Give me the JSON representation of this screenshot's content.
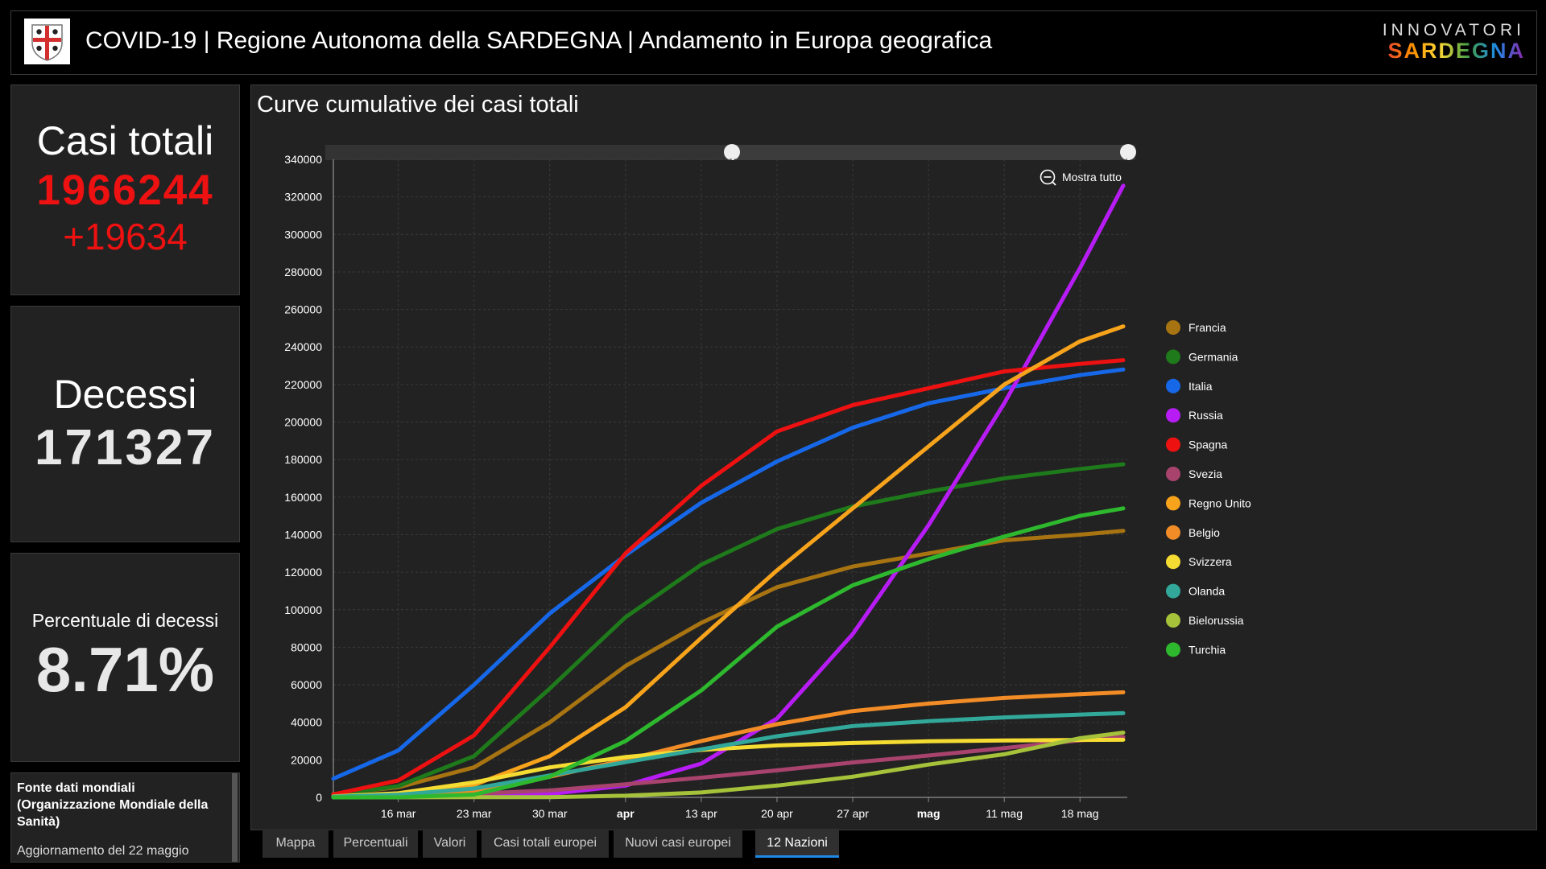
{
  "header": {
    "title": "COVID-19 | Regione Autonoma della SARDEGNA | Andamento in Europa geografica",
    "brand_top": "INNOVATORI",
    "brand_bottom": "SARDEGNA"
  },
  "kpis": {
    "cases_label": "Casi totali",
    "cases_value": "1966244",
    "cases_delta": "+19634",
    "deaths_label": "Decessi",
    "deaths_value": "171327",
    "pct_label": "Percentuale di decessi",
    "pct_value": "8.71%"
  },
  "source": {
    "title": "Fonte dati mondiali (Organizzazione Mondiale della Sanità)",
    "update": "Aggiornamento del 22 maggio"
  },
  "chart_title": "Curve cumulative dei casi totali",
  "zoom_label": "Mostra tutto",
  "tabs": [
    "Mappa",
    "Percentuali",
    "Valori",
    "Casi totali europei",
    "Nuovi casi europei",
    "12 Nazioni"
  ],
  "active_tab": 5,
  "colors": {
    "Francia": "#a87412",
    "Germania": "#1e7a1a",
    "Italia": "#1668e8",
    "Russia": "#b71cf5",
    "Spagna": "#ee1111",
    "Svezia": "#a8436e",
    "Regno Unito": "#f7a41c",
    "Belgio": "#f28c26",
    "Svizzera": "#f5dc32",
    "Olanda": "#32a89a",
    "Bielorussia": "#a5c23a",
    "Turchia": "#2eb82e"
  },
  "chart_data": {
    "type": "line",
    "title": "Curve cumulative dei casi totali",
    "ylim": [
      0,
      340000
    ],
    "yticks": [
      0,
      20000,
      40000,
      60000,
      80000,
      100000,
      120000,
      140000,
      160000,
      180000,
      200000,
      220000,
      240000,
      260000,
      280000,
      300000,
      320000,
      340000
    ],
    "x_start": "2020-03-10",
    "x_end": "2020-05-22",
    "xticks": [
      "16 mar",
      "23 mar",
      "30 mar",
      "apr",
      "13 apr",
      "20 apr",
      "27 apr",
      "mag",
      "11 mag",
      "18 mag"
    ],
    "xtick_dates": [
      "2020-03-16",
      "2020-03-23",
      "2020-03-30",
      "2020-04-06",
      "2020-04-13",
      "2020-04-20",
      "2020-04-27",
      "2020-05-04",
      "2020-05-11",
      "2020-05-18"
    ],
    "legend_position": "right",
    "series": [
      {
        "name": "Francia",
        "points": [
          [
            "2020-03-10",
            1800
          ],
          [
            "2020-03-16",
            5400
          ],
          [
            "2020-03-23",
            16000
          ],
          [
            "2020-03-30",
            40000
          ],
          [
            "2020-04-06",
            70000
          ],
          [
            "2020-04-13",
            93000
          ],
          [
            "2020-04-20",
            112000
          ],
          [
            "2020-04-27",
            123000
          ],
          [
            "2020-05-04",
            130000
          ],
          [
            "2020-05-11",
            137000
          ],
          [
            "2020-05-18",
            140000
          ],
          [
            "2020-05-22",
            142000
          ]
        ]
      },
      {
        "name": "Germania",
        "points": [
          [
            "2020-03-10",
            1200
          ],
          [
            "2020-03-16",
            6000
          ],
          [
            "2020-03-23",
            22000
          ],
          [
            "2020-03-30",
            58000
          ],
          [
            "2020-04-06",
            96000
          ],
          [
            "2020-04-13",
            124000
          ],
          [
            "2020-04-20",
            143000
          ],
          [
            "2020-04-27",
            155000
          ],
          [
            "2020-05-04",
            163000
          ],
          [
            "2020-05-11",
            170000
          ],
          [
            "2020-05-18",
            175000
          ],
          [
            "2020-05-22",
            177500
          ]
        ]
      },
      {
        "name": "Italia",
        "points": [
          [
            "2020-03-10",
            10000
          ],
          [
            "2020-03-16",
            25000
          ],
          [
            "2020-03-23",
            60000
          ],
          [
            "2020-03-30",
            98000
          ],
          [
            "2020-04-06",
            129000
          ],
          [
            "2020-04-13",
            157000
          ],
          [
            "2020-04-20",
            179000
          ],
          [
            "2020-04-27",
            197000
          ],
          [
            "2020-05-04",
            210000
          ],
          [
            "2020-05-11",
            218000
          ],
          [
            "2020-05-18",
            225000
          ],
          [
            "2020-05-22",
            228000
          ]
        ]
      },
      {
        "name": "Russia",
        "points": [
          [
            "2020-03-10",
            20
          ],
          [
            "2020-03-16",
            90
          ],
          [
            "2020-03-23",
            500
          ],
          [
            "2020-03-30",
            1800
          ],
          [
            "2020-04-06",
            6300
          ],
          [
            "2020-04-13",
            18000
          ],
          [
            "2020-04-20",
            42000
          ],
          [
            "2020-04-27",
            87000
          ],
          [
            "2020-05-04",
            145000
          ],
          [
            "2020-05-11",
            210000
          ],
          [
            "2020-05-18",
            282000
          ],
          [
            "2020-05-22",
            326000
          ]
        ]
      },
      {
        "name": "Spagna",
        "points": [
          [
            "2020-03-10",
            1600
          ],
          [
            "2020-03-16",
            9000
          ],
          [
            "2020-03-23",
            33000
          ],
          [
            "2020-03-30",
            80000
          ],
          [
            "2020-04-06",
            130000
          ],
          [
            "2020-04-13",
            166000
          ],
          [
            "2020-04-20",
            195000
          ],
          [
            "2020-04-27",
            209000
          ],
          [
            "2020-05-04",
            218000
          ],
          [
            "2020-05-11",
            227000
          ],
          [
            "2020-05-18",
            231000
          ],
          [
            "2020-05-22",
            233000
          ]
        ]
      },
      {
        "name": "Svezia",
        "points": [
          [
            "2020-03-10",
            300
          ],
          [
            "2020-03-16",
            1100
          ],
          [
            "2020-03-23",
            2000
          ],
          [
            "2020-03-30",
            3700
          ],
          [
            "2020-04-06",
            7000
          ],
          [
            "2020-04-13",
            10500
          ],
          [
            "2020-04-20",
            14400
          ],
          [
            "2020-04-27",
            18600
          ],
          [
            "2020-05-04",
            22300
          ],
          [
            "2020-05-11",
            26300
          ],
          [
            "2020-05-18",
            30400
          ],
          [
            "2020-05-22",
            32200
          ]
        ]
      },
      {
        "name": "Regno Unito",
        "points": [
          [
            "2020-03-10",
            320
          ],
          [
            "2020-03-16",
            1400
          ],
          [
            "2020-03-23",
            6600
          ],
          [
            "2020-03-30",
            22000
          ],
          [
            "2020-04-06",
            48000
          ],
          [
            "2020-04-13",
            85000
          ],
          [
            "2020-04-20",
            121000
          ],
          [
            "2020-04-27",
            154000
          ],
          [
            "2020-05-04",
            187000
          ],
          [
            "2020-05-11",
            220000
          ],
          [
            "2020-05-18",
            243000
          ],
          [
            "2020-05-22",
            251000
          ]
        ]
      },
      {
        "name": "Belgio",
        "points": [
          [
            "2020-03-10",
            270
          ],
          [
            "2020-03-16",
            1100
          ],
          [
            "2020-03-23",
            3700
          ],
          [
            "2020-03-30",
            11000
          ],
          [
            "2020-04-06",
            20000
          ],
          [
            "2020-04-13",
            30000
          ],
          [
            "2020-04-20",
            39000
          ],
          [
            "2020-04-27",
            46000
          ],
          [
            "2020-05-04",
            50000
          ],
          [
            "2020-05-11",
            53000
          ],
          [
            "2020-05-18",
            55000
          ],
          [
            "2020-05-22",
            56000
          ]
        ]
      },
      {
        "name": "Svizzera",
        "points": [
          [
            "2020-03-10",
            500
          ],
          [
            "2020-03-16",
            2200
          ],
          [
            "2020-03-23",
            8000
          ],
          [
            "2020-03-30",
            16000
          ],
          [
            "2020-04-06",
            21500
          ],
          [
            "2020-04-13",
            25300
          ],
          [
            "2020-04-20",
            27700
          ],
          [
            "2020-04-27",
            29000
          ],
          [
            "2020-05-04",
            29900
          ],
          [
            "2020-05-11",
            30300
          ],
          [
            "2020-05-18",
            30600
          ],
          [
            "2020-05-22",
            30700
          ]
        ]
      },
      {
        "name": "Olanda",
        "points": [
          [
            "2020-03-10",
            380
          ],
          [
            "2020-03-16",
            1400
          ],
          [
            "2020-03-23",
            4700
          ],
          [
            "2020-03-30",
            11700
          ],
          [
            "2020-04-06",
            18800
          ],
          [
            "2020-04-13",
            25600
          ],
          [
            "2020-04-20",
            32600
          ],
          [
            "2020-04-27",
            38000
          ],
          [
            "2020-05-04",
            40600
          ],
          [
            "2020-05-11",
            42600
          ],
          [
            "2020-05-18",
            44100
          ],
          [
            "2020-05-22",
            44900
          ]
        ]
      },
      {
        "name": "Bielorussia",
        "points": [
          [
            "2020-03-10",
            10
          ],
          [
            "2020-03-16",
            30
          ],
          [
            "2020-03-23",
            80
          ],
          [
            "2020-03-30",
            150
          ],
          [
            "2020-04-06",
            900
          ],
          [
            "2020-04-13",
            2600
          ],
          [
            "2020-04-20",
            6300
          ],
          [
            "2020-04-27",
            11000
          ],
          [
            "2020-05-04",
            17500
          ],
          [
            "2020-05-11",
            23000
          ],
          [
            "2020-05-18",
            31500
          ],
          [
            "2020-05-22",
            34500
          ]
        ]
      },
      {
        "name": "Turchia",
        "points": [
          [
            "2020-03-10",
            0
          ],
          [
            "2020-03-16",
            50
          ],
          [
            "2020-03-23",
            1500
          ],
          [
            "2020-03-30",
            11000
          ],
          [
            "2020-04-06",
            30000
          ],
          [
            "2020-04-13",
            57000
          ],
          [
            "2020-04-20",
            91000
          ],
          [
            "2020-04-27",
            113000
          ],
          [
            "2020-05-04",
            127000
          ],
          [
            "2020-05-11",
            139000
          ],
          [
            "2020-05-18",
            150000
          ],
          [
            "2020-05-22",
            154000
          ]
        ]
      }
    ]
  }
}
